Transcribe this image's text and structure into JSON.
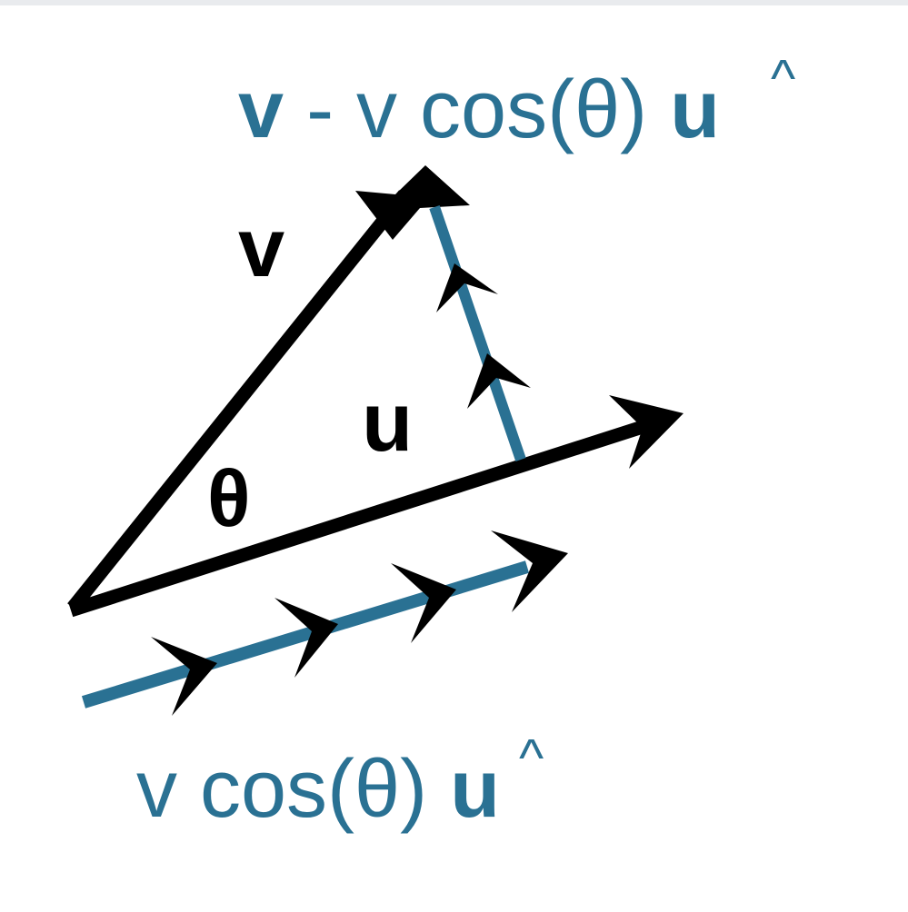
{
  "colors": {
    "ink": "#000000",
    "accent": "#2a7193",
    "background": "#ffffff"
  },
  "labels": {
    "v": "v",
    "u": "u",
    "theta": "θ",
    "perp_v_bold": "v",
    "perp_rest": " - v cos(θ) ",
    "perp_u_bold": "u",
    "perp_hat": "^",
    "proj_rest": "v cos(θ) ",
    "proj_u_bold": "u",
    "proj_hat": "^"
  }
}
